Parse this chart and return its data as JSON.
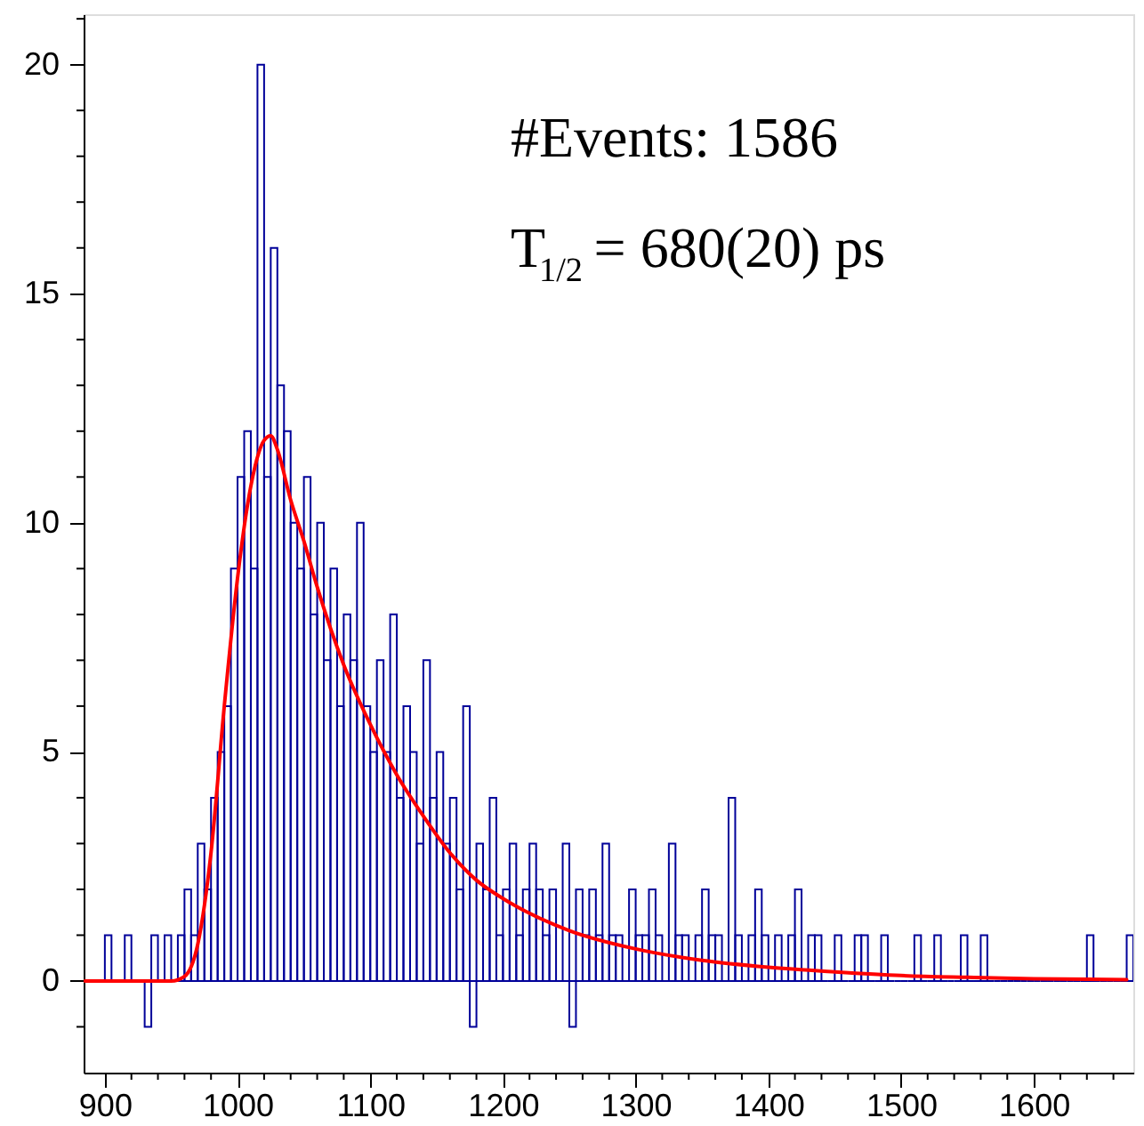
{
  "chart_data": {
    "type": "histogram",
    "bins": [
      885,
      890,
      895,
      900,
      905,
      910,
      915,
      920,
      925,
      930,
      935,
      940,
      945,
      950,
      955,
      960,
      965,
      970,
      975,
      980,
      985,
      990,
      995,
      1000,
      1005,
      1010,
      1015,
      1020,
      1025,
      1030,
      1035,
      1040,
      1045,
      1050,
      1055,
      1060,
      1065,
      1070,
      1075,
      1080,
      1085,
      1090,
      1095,
      1100,
      1105,
      1110,
      1115,
      1120,
      1125,
      1130,
      1135,
      1140,
      1145,
      1150,
      1155,
      1160,
      1165,
      1170,
      1175,
      1180,
      1185,
      1190,
      1195,
      1200,
      1205,
      1210,
      1215,
      1220,
      1225,
      1230,
      1235,
      1240,
      1245,
      1250,
      1255,
      1260,
      1265,
      1270,
      1275,
      1280,
      1285,
      1290,
      1295,
      1300,
      1305,
      1310,
      1315,
      1320,
      1325,
      1330,
      1335,
      1340,
      1345,
      1350,
      1355,
      1360,
      1365,
      1370,
      1375,
      1380,
      1385,
      1390,
      1395,
      1400,
      1405,
      1410,
      1415,
      1420,
      1425,
      1430,
      1435,
      1440,
      1445,
      1450,
      1455,
      1460,
      1465,
      1470,
      1475,
      1480,
      1485,
      1490,
      1495,
      1500,
      1505,
      1510,
      1515,
      1520,
      1525,
      1530,
      1535,
      1540,
      1545,
      1550,
      1555,
      1560,
      1565,
      1570,
      1575,
      1580,
      1585,
      1590,
      1595,
      1600,
      1605,
      1610,
      1615,
      1620,
      1625,
      1630,
      1635,
      1640,
      1645,
      1650,
      1655,
      1660,
      1665,
      1670,
      1675
    ],
    "series": [
      {
        "color": "#000099",
        "values": [
          0,
          0,
          0,
          1,
          0,
          0,
          1,
          0,
          0,
          -1,
          1,
          0,
          1,
          0,
          1,
          2,
          1,
          3,
          2,
          4,
          5,
          6,
          9,
          11,
          12,
          9,
          20,
          11,
          16,
          13,
          12,
          10,
          9,
          11,
          8,
          10,
          7,
          9,
          6,
          8,
          7,
          10,
          6,
          5,
          7,
          5,
          8,
          4,
          6,
          5,
          3,
          7,
          4,
          5,
          3,
          4,
          2,
          6,
          -1,
          3,
          2,
          4,
          1,
          2,
          3,
          1,
          2,
          3,
          2,
          1,
          2,
          0,
          3,
          -1,
          2,
          1,
          2,
          1,
          3,
          1,
          1,
          0,
          2,
          1,
          1,
          2,
          1,
          0,
          3,
          1,
          1,
          0,
          1,
          2,
          1,
          1,
          0,
          4,
          1,
          0,
          1,
          2,
          1,
          0,
          1,
          0,
          1,
          2,
          0,
          1,
          1,
          0,
          0,
          1,
          0,
          0,
          1,
          1,
          0,
          0,
          1,
          0,
          0,
          0,
          0,
          1,
          0,
          0,
          1,
          0,
          0,
          0,
          1,
          0,
          0,
          1,
          0,
          0,
          0,
          0,
          0,
          0,
          0,
          0,
          0,
          0,
          0,
          0,
          0,
          0,
          0,
          1,
          0,
          0,
          0,
          0,
          0,
          1
        ]
      },
      {
        "type": "line",
        "color": "#ff0000",
        "x": [
          885,
          950,
          960,
          970,
          980,
          990,
          1000,
          1010,
          1020,
          1025,
          1030,
          1040,
          1050,
          1060,
          1080,
          1100,
          1120,
          1140,
          1160,
          1180,
          1200,
          1250,
          1300,
          1350,
          1400,
          1450,
          1500,
          1550,
          1600,
          1670
        ],
        "values": [
          0,
          0,
          0.1,
          0.8,
          2.8,
          6,
          8.8,
          10.8,
          11.8,
          11.9,
          11.6,
          10.5,
          9.6,
          8.6,
          6.9,
          5.6,
          4.5,
          3.6,
          2.8,
          2.2,
          1.8,
          1.1,
          0.7,
          0.45,
          0.3,
          0.2,
          0.12,
          0.08,
          0.05,
          0.03
        ]
      }
    ],
    "xlim": [
      884,
      1675
    ],
    "xticks": [
      900,
      {
        "value": 920,
        "label": null
      },
      {
        "value": 940,
        "label": null
      },
      {
        "value": 960,
        "label": null
      },
      {
        "value": 980,
        "label": null
      },
      1000,
      {
        "value": 1020,
        "label": null
      },
      {
        "value": 1040,
        "label": null
      },
      {
        "value": 1060,
        "label": null
      },
      {
        "value": 1080,
        "label": null
      },
      1100,
      {
        "value": 1120,
        "label": null
      },
      {
        "value": 1140,
        "label": null
      },
      {
        "value": 1160,
        "label": null
      },
      {
        "value": 1180,
        "label": null
      },
      1200,
      {
        "value": 1220,
        "label": null
      },
      {
        "value": 1240,
        "label": null
      },
      {
        "value": 1260,
        "label": null
      },
      {
        "value": 1280,
        "label": null
      },
      1300,
      {
        "value": 1320,
        "label": null
      },
      {
        "value": 1340,
        "label": null
      },
      {
        "value": 1360,
        "label": null
      },
      {
        "value": 1380,
        "label": null
      },
      1400,
      {
        "value": 1420,
        "label": null
      },
      {
        "value": 1440,
        "label": null
      },
      {
        "value": 1460,
        "label": null
      },
      {
        "value": 1480,
        "label": null
      },
      1500,
      {
        "value": 1520,
        "label": null
      },
      {
        "value": 1540,
        "label": null
      },
      {
        "value": 1560,
        "label": null
      },
      {
        "value": 1580,
        "label": null
      },
      1600,
      {
        "value": 1620,
        "label": null
      },
      {
        "value": 1640,
        "label": null
      },
      {
        "value": 1660,
        "label": null
      }
    ],
    "ylim": [
      -2,
      21.1
    ],
    "yticks": [
      {
        "value": -1,
        "label": null
      },
      0,
      {
        "value": 1,
        "label": null
      },
      {
        "value": 2,
        "label": null
      },
      {
        "value": 3,
        "label": null
      },
      {
        "value": 4,
        "label": null
      },
      5,
      {
        "value": 6,
        "label": null
      },
      {
        "value": 7,
        "label": null
      },
      {
        "value": 8,
        "label": null
      },
      {
        "value": 9,
        "label": null
      },
      10,
      {
        "value": 11,
        "label": null
      },
      {
        "value": 12,
        "label": null
      },
      {
        "value": 13,
        "label": null
      },
      {
        "value": 14,
        "label": null
      },
      15,
      {
        "value": 16,
        "label": null
      },
      {
        "value": 17,
        "label": null
      },
      {
        "value": 18,
        "label": null
      },
      {
        "value": 19,
        "label": null
      },
      20,
      {
        "value": 21,
        "label": null
      }
    ],
    "annotations": [
      "#Events: 1586",
      "T$_{1/2}$ = 680(20) ps"
    ]
  }
}
